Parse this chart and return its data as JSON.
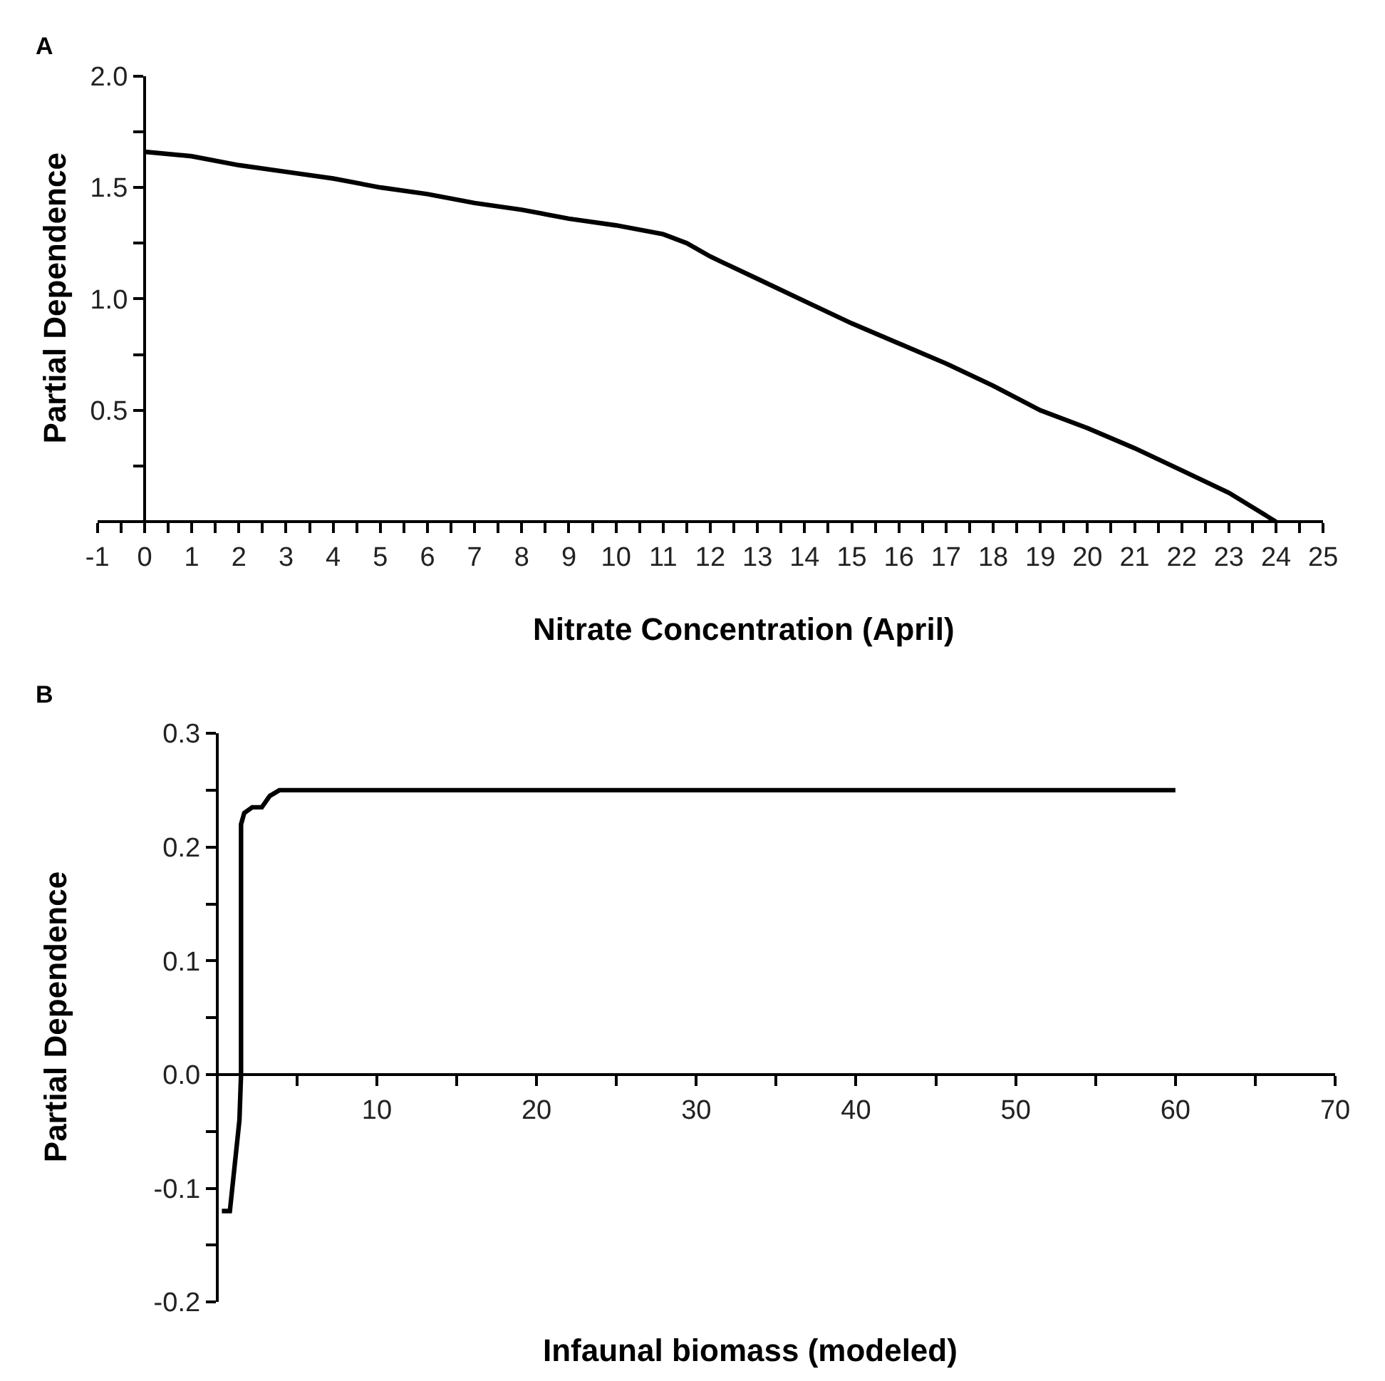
{
  "chart_data": [
    {
      "type": "line",
      "title": "A",
      "xlabel": "Nitrate Concentration (April)",
      "ylabel": "Partial Dependence",
      "x": [
        0,
        1,
        2,
        3,
        4,
        5,
        6,
        7,
        8,
        9,
        10,
        11,
        11.5,
        12,
        13,
        14,
        15,
        16,
        17,
        18,
        19,
        20,
        21,
        22,
        23,
        24
      ],
      "series": [
        {
          "color": "#000000",
          "values": [
            1.66,
            1.64,
            1.6,
            1.57,
            1.54,
            1.5,
            1.47,
            1.43,
            1.4,
            1.36,
            1.33,
            1.29,
            1.25,
            1.19,
            1.09,
            0.99,
            0.89,
            0.8,
            0.71,
            0.61,
            0.5,
            0.42,
            0.33,
            0.23,
            0.13,
            0.0
          ]
        }
      ],
      "xlim": [
        -1,
        25
      ],
      "xticks": [
        -1,
        {
          "value": -0.5,
          "label": null
        },
        0,
        {
          "value": 0.5,
          "label": null
        },
        1,
        {
          "value": 1.5,
          "label": null
        },
        2,
        {
          "value": 2.5,
          "label": null
        },
        3,
        {
          "value": 3.5,
          "label": null
        },
        4,
        {
          "value": 4.5,
          "label": null
        },
        5,
        {
          "value": 5.5,
          "label": null
        },
        6,
        {
          "value": 6.5,
          "label": null
        },
        7,
        {
          "value": 7.5,
          "label": null
        },
        8,
        {
          "value": 8.5,
          "label": null
        },
        9,
        {
          "value": 9.5,
          "label": null
        },
        10,
        {
          "value": 10.5,
          "label": null
        },
        11,
        {
          "value": 11.5,
          "label": null
        },
        12,
        {
          "value": 12.5,
          "label": null
        },
        13,
        {
          "value": 13.5,
          "label": null
        },
        14,
        {
          "value": 14.5,
          "label": null
        },
        15,
        {
          "value": 15.5,
          "label": null
        },
        16,
        {
          "value": 16.5,
          "label": null
        },
        17,
        {
          "value": 17.5,
          "label": null
        },
        18,
        {
          "value": 18.5,
          "label": null
        },
        19,
        {
          "value": 19.5,
          "label": null
        },
        20,
        {
          "value": 20.5,
          "label": null
        },
        21,
        {
          "value": 21.5,
          "label": null
        },
        22,
        {
          "value": 22.5,
          "label": null
        },
        23,
        {
          "value": 23.5,
          "label": null
        },
        24,
        {
          "value": 24.5,
          "label": null
        },
        25
      ],
      "ylim": [
        0,
        2.0
      ],
      "yticks": [
        {
          "value": 0.25,
          "label": null
        },
        0.5,
        {
          "value": 0.75,
          "label": null
        },
        {
          "value": 1,
          "label": "1.0"
        },
        {
          "value": 1.25,
          "label": null
        },
        1.5,
        {
          "value": 1.75,
          "label": null
        },
        {
          "value": 2,
          "label": "2.0"
        }
      ],
      "marker": "none",
      "line_style": "solid"
    },
    {
      "type": "line",
      "title": "B",
      "xlabel": "Infaunal biomass (modeled)",
      "ylabel": "Partial Dependence",
      "x": [
        0.3,
        0.8,
        1.4,
        1.5,
        1.5,
        1.7,
        2.2,
        2.8,
        3.3,
        3.9,
        60
      ],
      "series": [
        {
          "color": "#000000",
          "values": [
            -0.12,
            -0.12,
            -0.04,
            0.0,
            0.22,
            0.23,
            0.235,
            0.235,
            0.245,
            0.25,
            0.25
          ]
        }
      ],
      "xlim": [
        0,
        70
      ],
      "xticks": [
        {
          "value": 5,
          "label": null
        },
        10,
        {
          "value": 15,
          "label": null
        },
        20,
        {
          "value": 25,
          "label": null
        },
        30,
        {
          "value": 35,
          "label": null
        },
        40,
        {
          "value": 45,
          "label": null
        },
        50,
        {
          "value": 55,
          "label": null
        },
        60,
        {
          "value": 65,
          "label": null
        },
        70
      ],
      "ylim": [
        -0.2,
        0.3
      ],
      "yticks": [
        -0.2,
        {
          "value": -0.15,
          "label": null
        },
        -0.1,
        {
          "value": -0.05,
          "label": null
        },
        {
          "value": 0,
          "label": "0.0"
        },
        {
          "value": 0.05,
          "label": null
        },
        0.1,
        {
          "value": 0.15,
          "label": null
        },
        0.2,
        {
          "value": 0.25,
          "label": null
        },
        0.3
      ],
      "marker": "none",
      "line_style": "solid"
    }
  ]
}
